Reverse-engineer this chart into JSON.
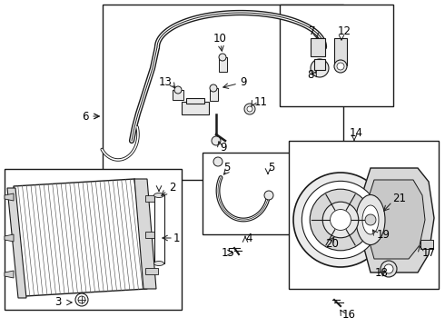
{
  "background_color": "#ffffff",
  "fig_width": 4.9,
  "fig_height": 3.6,
  "dpi": 100,
  "line_color": "#1a1a1a",
  "label_fontsize": 8.5,
  "label_color": "#000000"
}
